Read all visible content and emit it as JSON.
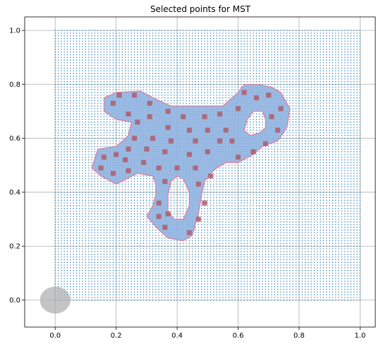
{
  "chart_data": {
    "type": "scatter",
    "title": "Selected points for MST",
    "xlabel": "",
    "ylabel": "",
    "xlim": [
      -0.1,
      1.05
    ],
    "ylim": [
      -0.1,
      1.05
    ],
    "grid": true,
    "x_ticks": [
      0.0,
      0.2,
      0.4,
      0.6,
      0.8,
      1.0
    ],
    "y_ticks": [
      0.0,
      0.2,
      0.4,
      0.6,
      0.8,
      1.0
    ],
    "x_tick_labels": [
      "0.0",
      "0.2",
      "0.4",
      "0.6",
      "0.8",
      "1.0"
    ],
    "y_tick_labels": [
      "0.0",
      "0.2",
      "0.4",
      "0.6",
      "0.8",
      "1.0"
    ],
    "colors": {
      "grid_points": "#1f77b4",
      "region_fill": "#8fb3e0",
      "region_edge": "#e07a9a",
      "selected_points": "#b05a6a",
      "start_disc": "#b0b0b0"
    },
    "grid_points": {
      "x_range": [
        0.0,
        1.0
      ],
      "y_range": [
        0.0,
        1.0
      ],
      "step": 0.01
    },
    "start_disc": {
      "center": [
        0.0,
        0.0
      ],
      "radius": 0.05
    },
    "region": {
      "outer": [
        [
          0.12,
          0.49
        ],
        [
          0.14,
          0.56
        ],
        [
          0.2,
          0.57
        ],
        [
          0.24,
          0.61
        ],
        [
          0.25,
          0.66
        ],
        [
          0.2,
          0.67
        ],
        [
          0.16,
          0.7
        ],
        [
          0.16,
          0.75
        ],
        [
          0.2,
          0.77
        ],
        [
          0.28,
          0.775
        ],
        [
          0.33,
          0.745
        ],
        [
          0.38,
          0.72
        ],
        [
          0.46,
          0.72
        ],
        [
          0.55,
          0.72
        ],
        [
          0.6,
          0.77
        ],
        [
          0.62,
          0.8
        ],
        [
          0.66,
          0.8
        ],
        [
          0.71,
          0.79
        ],
        [
          0.74,
          0.77
        ],
        [
          0.77,
          0.71
        ],
        [
          0.76,
          0.64
        ],
        [
          0.73,
          0.59
        ],
        [
          0.68,
          0.57
        ],
        [
          0.65,
          0.54
        ],
        [
          0.6,
          0.51
        ],
        [
          0.56,
          0.51
        ],
        [
          0.53,
          0.49
        ],
        [
          0.51,
          0.47
        ],
        [
          0.49,
          0.44
        ],
        [
          0.48,
          0.39
        ],
        [
          0.47,
          0.32
        ],
        [
          0.45,
          0.24
        ],
        [
          0.42,
          0.22
        ],
        [
          0.37,
          0.23
        ],
        [
          0.34,
          0.26
        ],
        [
          0.3,
          0.31
        ],
        [
          0.32,
          0.35
        ],
        [
          0.33,
          0.39
        ],
        [
          0.33,
          0.43
        ],
        [
          0.32,
          0.46
        ],
        [
          0.27,
          0.47
        ],
        [
          0.2,
          0.43
        ],
        [
          0.15,
          0.46
        ],
        [
          0.12,
          0.49
        ]
      ],
      "holes": [
        [
          [
            0.62,
            0.63
          ],
          [
            0.63,
            0.67
          ],
          [
            0.65,
            0.7
          ],
          [
            0.68,
            0.7
          ],
          [
            0.69,
            0.67
          ],
          [
            0.69,
            0.64
          ],
          [
            0.67,
            0.62
          ],
          [
            0.64,
            0.61
          ],
          [
            0.62,
            0.63
          ]
        ],
        [
          [
            0.37,
            0.33
          ],
          [
            0.37,
            0.39
          ],
          [
            0.38,
            0.44
          ],
          [
            0.4,
            0.46
          ],
          [
            0.42,
            0.45
          ],
          [
            0.44,
            0.4
          ],
          [
            0.44,
            0.35
          ],
          [
            0.42,
            0.3
          ],
          [
            0.39,
            0.3
          ],
          [
            0.37,
            0.33
          ]
        ]
      ]
    },
    "selected_points": [
      [
        0.21,
        0.76
      ],
      [
        0.26,
        0.76
      ],
      [
        0.19,
        0.73
      ],
      [
        0.31,
        0.73
      ],
      [
        0.24,
        0.69
      ],
      [
        0.31,
        0.68
      ],
      [
        0.37,
        0.7
      ],
      [
        0.42,
        0.68
      ],
      [
        0.49,
        0.68
      ],
      [
        0.54,
        0.69
      ],
      [
        0.27,
        0.66
      ],
      [
        0.6,
        0.71
      ],
      [
        0.62,
        0.77
      ],
      [
        0.66,
        0.75
      ],
      [
        0.7,
        0.76
      ],
      [
        0.74,
        0.71
      ],
      [
        0.71,
        0.68
      ],
      [
        0.37,
        0.64
      ],
      [
        0.44,
        0.63
      ],
      [
        0.5,
        0.63
      ],
      [
        0.56,
        0.63
      ],
      [
        0.73,
        0.63
      ],
      [
        0.26,
        0.6
      ],
      [
        0.32,
        0.6
      ],
      [
        0.38,
        0.59
      ],
      [
        0.46,
        0.59
      ],
      [
        0.54,
        0.59
      ],
      [
        0.58,
        0.59
      ],
      [
        0.69,
        0.58
      ],
      [
        0.24,
        0.56
      ],
      [
        0.3,
        0.56
      ],
      [
        0.36,
        0.55
      ],
      [
        0.44,
        0.54
      ],
      [
        0.5,
        0.55
      ],
      [
        0.6,
        0.53
      ],
      [
        0.65,
        0.55
      ],
      [
        0.16,
        0.53
      ],
      [
        0.2,
        0.54
      ],
      [
        0.23,
        0.52
      ],
      [
        0.29,
        0.51
      ],
      [
        0.34,
        0.49
      ],
      [
        0.4,
        0.49
      ],
      [
        0.46,
        0.49
      ],
      [
        0.15,
        0.49
      ],
      [
        0.19,
        0.47
      ],
      [
        0.24,
        0.48
      ],
      [
        0.51,
        0.46
      ],
      [
        0.36,
        0.44
      ],
      [
        0.47,
        0.43
      ],
      [
        0.34,
        0.36
      ],
      [
        0.49,
        0.36
      ],
      [
        0.34,
        0.31
      ],
      [
        0.37,
        0.32
      ],
      [
        0.47,
        0.3
      ],
      [
        0.36,
        0.27
      ],
      [
        0.44,
        0.25
      ]
    ]
  }
}
